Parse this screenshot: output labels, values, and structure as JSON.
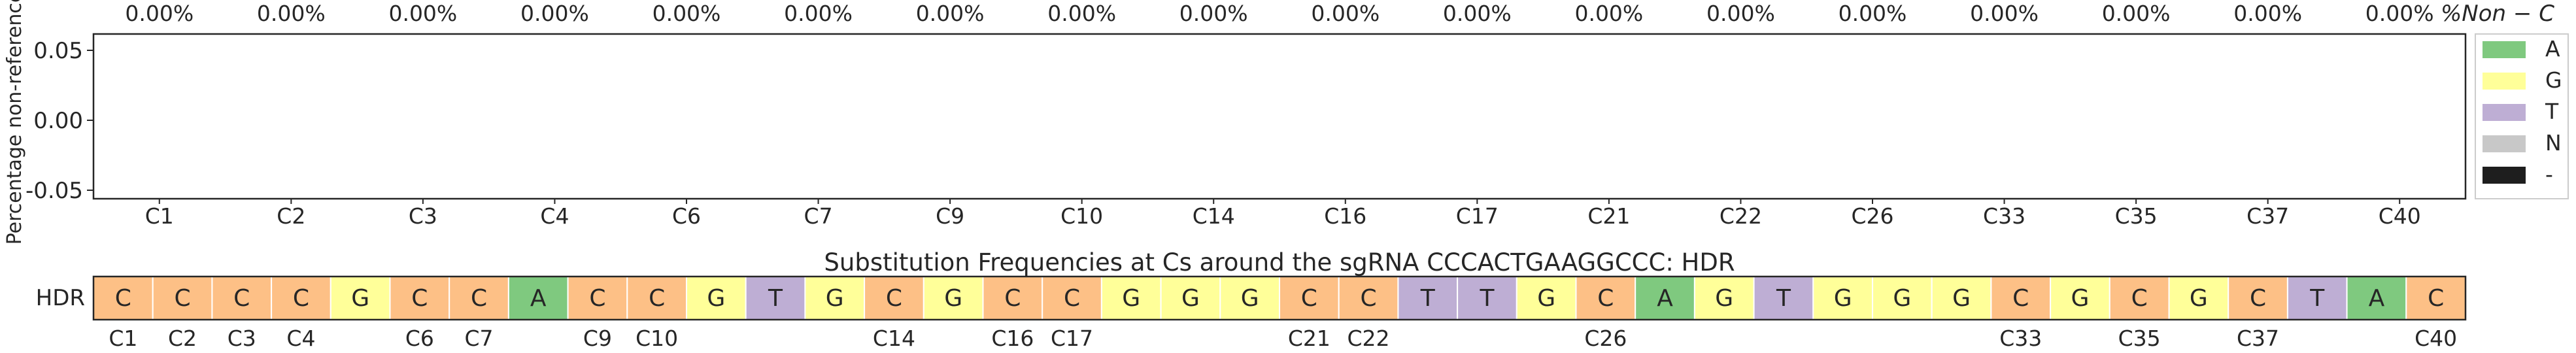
{
  "chart_data": [
    {
      "type": "bar",
      "ylabel": "Percentage non-reference",
      "ylim": [
        -0.05,
        0.05
      ],
      "yticks": [
        "0.05",
        "0.00",
        "-0.05"
      ],
      "yticks_values": [
        0.05,
        0.0,
        -0.05
      ],
      "categories": [
        "C1",
        "C2",
        "C3",
        "C4",
        "C6",
        "C7",
        "C9",
        "C10",
        "C14",
        "C16",
        "C17",
        "C21",
        "C22",
        "C26",
        "C33",
        "C35",
        "C37",
        "C40"
      ],
      "top_labels": [
        "0.00%",
        "0.00%",
        "0.00%",
        "0.00%",
        "0.00%",
        "0.00%",
        "0.00%",
        "0.00%",
        "0.00%",
        "0.00%",
        "0.00%",
        "0.00%",
        "0.00%",
        "0.00%",
        "0.00%",
        "0.00%",
        "0.00%",
        "0.00%"
      ],
      "top_label_suffix": "%Non − C",
      "series": [
        {
          "name": "A",
          "color": "#7fc97f",
          "values": [
            0,
            0,
            0,
            0,
            0,
            0,
            0,
            0,
            0,
            0,
            0,
            0,
            0,
            0,
            0,
            0,
            0,
            0
          ]
        },
        {
          "name": "G",
          "color": "#ffff99",
          "values": [
            0,
            0,
            0,
            0,
            0,
            0,
            0,
            0,
            0,
            0,
            0,
            0,
            0,
            0,
            0,
            0,
            0,
            0
          ]
        },
        {
          "name": "T",
          "color": "#beaed4",
          "values": [
            0,
            0,
            0,
            0,
            0,
            0,
            0,
            0,
            0,
            0,
            0,
            0,
            0,
            0,
            0,
            0,
            0,
            0
          ]
        },
        {
          "name": "N",
          "color": "#c8c8c8",
          "values": [
            0,
            0,
            0,
            0,
            0,
            0,
            0,
            0,
            0,
            0,
            0,
            0,
            0,
            0,
            0,
            0,
            0,
            0
          ]
        },
        {
          "name": "-",
          "color": "#1e1e1e",
          "values": [
            0,
            0,
            0,
            0,
            0,
            0,
            0,
            0,
            0,
            0,
            0,
            0,
            0,
            0,
            0,
            0,
            0,
            0
          ]
        }
      ],
      "legend": {
        "placement": "right",
        "entries": [
          "A",
          "G",
          "T",
          "N",
          "-"
        ]
      }
    },
    {
      "type": "heatmap",
      "title": "Substitution Frequencies at Cs around the sgRNA CCCACTGAAGGCCC: HDR",
      "row_label": "HDR",
      "sequence": [
        "C",
        "C",
        "C",
        "C",
        "G",
        "C",
        "C",
        "A",
        "C",
        "C",
        "G",
        "T",
        "G",
        "C",
        "G",
        "C",
        "C",
        "G",
        "G",
        "G",
        "C",
        "C",
        "T",
        "T",
        "G",
        "C",
        "A",
        "G",
        "T",
        "G",
        "G",
        "G",
        "C",
        "G",
        "C",
        "G",
        "C",
        "T",
        "A",
        "C"
      ],
      "c_position_labels": [
        {
          "index": 0,
          "label": "C1"
        },
        {
          "index": 1,
          "label": "C2"
        },
        {
          "index": 2,
          "label": "C3"
        },
        {
          "index": 3,
          "label": "C4"
        },
        {
          "index": 5,
          "label": "C6"
        },
        {
          "index": 6,
          "label": "C7"
        },
        {
          "index": 8,
          "label": "C9"
        },
        {
          "index": 9,
          "label": "C10"
        },
        {
          "index": 13,
          "label": "C14"
        },
        {
          "index": 15,
          "label": "C16"
        },
        {
          "index": 16,
          "label": "C17"
        },
        {
          "index": 20,
          "label": "C21"
        },
        {
          "index": 21,
          "label": "C22"
        },
        {
          "index": 25,
          "label": "C26"
        },
        {
          "index": 32,
          "label": "C33"
        },
        {
          "index": 34,
          "label": "C35"
        },
        {
          "index": 36,
          "label": "C37"
        },
        {
          "index": 39,
          "label": "C40"
        }
      ],
      "base_colors": {
        "A": "#7fc97f",
        "C": "#fdc086",
        "G": "#ffff99",
        "T": "#beaed4"
      }
    }
  ]
}
